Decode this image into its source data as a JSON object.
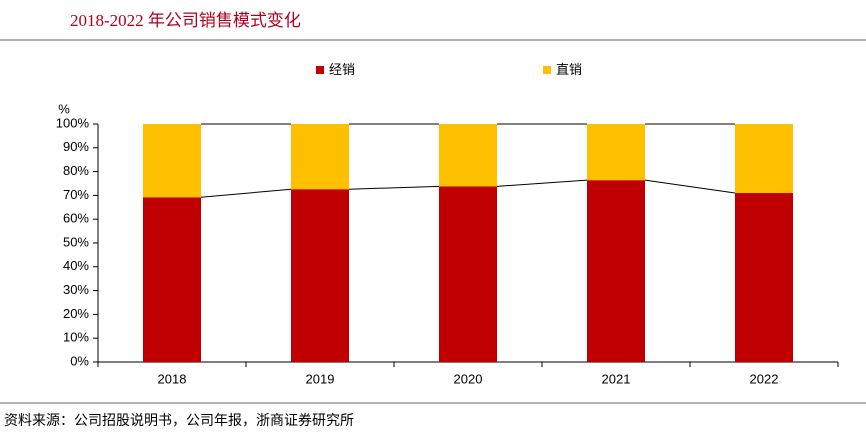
{
  "chart_data": {
    "type": "stacked_bar",
    "title": "2018-2022 年公司销售模式变化",
    "y_unit": "%",
    "source": "资料来源：公司招股说明书，公司年报，浙商证券研究所",
    "categories": [
      "2018",
      "2019",
      "2020",
      "2021",
      "2022"
    ],
    "series": [
      {
        "name": "经销",
        "color": "#c00000",
        "values": [
          69.2,
          72.6,
          73.8,
          76.4,
          71.0
        ]
      },
      {
        "name": "直销",
        "color": "#ffc000",
        "values": [
          30.8,
          27.4,
          26.2,
          23.6,
          29.0
        ]
      }
    ],
    "ylim": [
      0,
      100
    ],
    "yticks": [
      {
        "value": 0,
        "label": "0%"
      },
      {
        "value": 10,
        "label": "10%"
      },
      {
        "value": 20,
        "label": "20%"
      },
      {
        "value": 30,
        "label": "30%"
      },
      {
        "value": 40,
        "label": "40%"
      },
      {
        "value": 50,
        "label": "50%"
      },
      {
        "value": 60,
        "label": "60%"
      },
      {
        "value": 70,
        "label": "70%"
      },
      {
        "value": 80,
        "label": "80%"
      },
      {
        "value": 90,
        "label": "90%"
      },
      {
        "value": 100,
        "label": "100%"
      }
    ],
    "connector_lines": true
  }
}
